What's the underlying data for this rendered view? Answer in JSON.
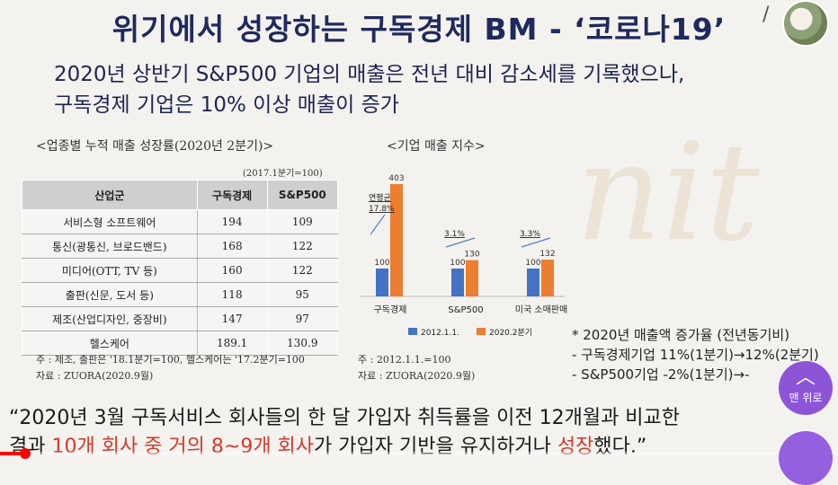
{
  "header": {
    "title": "위기에서 성장하는 구독경제 BM - ‘코로나19’",
    "chevron_glyph": "/"
  },
  "subtitle": {
    "line1": "2020년 상반기 S&P500 기업의 매출은 전년 대비 감소세를 기록했으나,",
    "line2": "구독경제 기업은 10% 이상 매출이 증가"
  },
  "table": {
    "caption": "<업종별 누적 매출 성장률(2020년 2분기)>",
    "note": "(2017.1분기=100)",
    "columns": [
      "산업군",
      "구독경제",
      "S&P500"
    ],
    "rows": [
      [
        "서비스형 소프트웨어",
        "194",
        "109"
      ],
      [
        "통신(광통신, 브로드밴드)",
        "168",
        "122"
      ],
      [
        "미디어(OTT, TV 등)",
        "160",
        "122"
      ],
      [
        "출판(신문, 도서 등)",
        "118",
        "95"
      ],
      [
        "제조(산업디자인, 중장비)",
        "147",
        "97"
      ],
      [
        "헬스케어",
        "189.1",
        "130.9"
      ]
    ],
    "footnote": "주 : 제조, 출판은 '18.1분기=100, 헬스케어는 '17.2분기=100",
    "source": "자료 : ZUORA(2020.9월)"
  },
  "chart": {
    "caption": "<기업 매출 지수>",
    "footnote": "주 : 2012.1.1.=100",
    "source": "자료 : ZUORA(2020.9월)",
    "annotation_label": "연평균",
    "colors": {
      "base": "#4472c4",
      "current": "#ed7d31",
      "arrow": "#4f7fd0"
    }
  },
  "chart_data": {
    "type": "bar",
    "categories": [
      "구독경제",
      "S&P500",
      "미국 소매판매"
    ],
    "series": [
      {
        "name": "2012.1.1.",
        "values": [
          100,
          100,
          100
        ]
      },
      {
        "name": "2020.2분기",
        "values": [
          403,
          130,
          132
        ]
      }
    ],
    "annotations": [
      "17.8%",
      "3.1%",
      "3.3%"
    ],
    "ylim": [
      0,
      403
    ]
  },
  "rates": {
    "title": "* 2020년 매출액 증가율 (전년동기비)",
    "item1": "-   구독경제기업 11%(1분기)→12%(2분기)",
    "item2": "-   S&P500기업 -2%(1분기)→-"
  },
  "quote": {
    "line1": "“2020년 3월 구독서비스 회사들의 한 달 가입자 취득률을 이전 12개월과 비교한",
    "line2_a": "결과 ",
    "line2_b": "10개 회사 중 거의 8~9개 회사",
    "line2_c": "가 가입자 기반을 유지하거나 ",
    "line2_d": "성장",
    "line2_e": "했다.”"
  },
  "player": {
    "progress": 0.03,
    "top_button_label": "맨 위로",
    "top_button_arrow": "︿"
  },
  "watermark": "nit"
}
